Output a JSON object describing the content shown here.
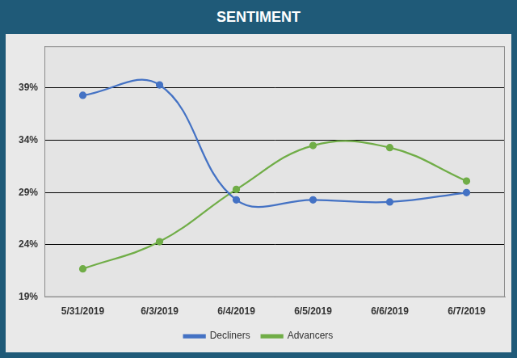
{
  "chart_data": {
    "type": "line",
    "title": "SENTIMENT",
    "categories": [
      "5/31/2019",
      "6/3/2019",
      "6/4/2019",
      "6/5/2019",
      "6/6/2019",
      "6/7/2019"
    ],
    "series": [
      {
        "name": "Decliners",
        "color": "#4472c4",
        "marker": "circle",
        "line_style": "solid",
        "values": [
          38.3,
          39.3,
          28.3,
          28.3,
          28.1,
          29.0
        ]
      },
      {
        "name": "Advancers",
        "color": "#70ad47",
        "marker": "circle",
        "line_style": "solid",
        "values": [
          21.7,
          24.3,
          29.3,
          33.5,
          33.3,
          30.1
        ]
      }
    ],
    "ylim": [
      19,
      43
    ],
    "yticks": [
      {
        "value": 19,
        "label": "19%"
      },
      {
        "value": 24,
        "label": "24%"
      },
      {
        "value": 29,
        "label": "29%"
      },
      {
        "value": 34,
        "label": "34%"
      },
      {
        "value": 39,
        "label": "39%"
      }
    ],
    "grid": true,
    "legend": "bottom"
  }
}
